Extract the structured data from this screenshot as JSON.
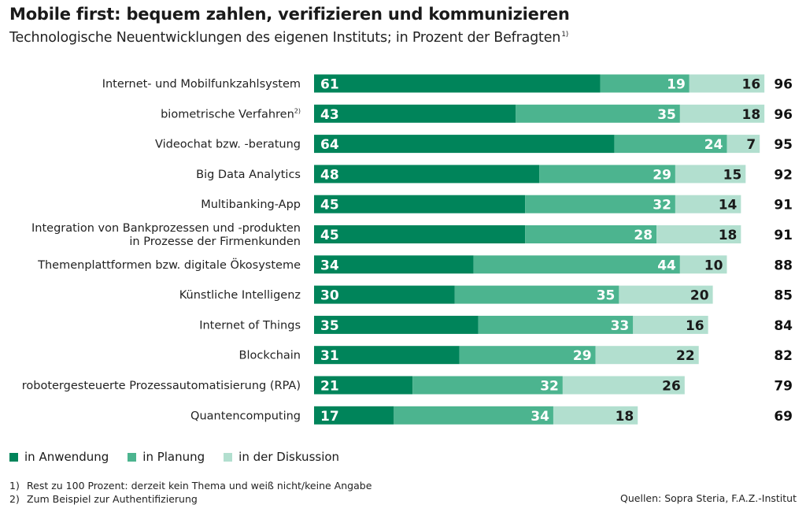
{
  "title": "Mobile first: bequem zahlen, verifizieren und kommunizieren",
  "subtitle": "Technologische Neuentwicklungen des eigenen Instituts; in Prozent der Befragten",
  "subtitle_note": "1)",
  "colors": {
    "in_anwendung": "#00845a",
    "in_planung": "#4cb48f",
    "in_diskussion": "#b2dfcf"
  },
  "legend": [
    {
      "label": "in Anwendung",
      "color": "#00845a"
    },
    {
      "label": "in Planung",
      "color": "#4cb48f"
    },
    {
      "label": "in der Diskussion",
      "color": "#b2dfcf"
    }
  ],
  "footnotes": [
    {
      "num": "1)",
      "text": "Rest zu 100 Prozent: derzeit kein Thema und weiß nicht/keine Angabe"
    },
    {
      "num": "2)",
      "text": "Zum Beispiel zur Authentifizierung"
    }
  ],
  "source": "Quellen: Sopra Steria, F.A.Z.-Institut",
  "chart_data": {
    "type": "bar",
    "orientation": "horizontal",
    "stacked": true,
    "categories": [
      {
        "lines": [
          "Internet- und Mobilfunkzahlsystem"
        ],
        "note": ""
      },
      {
        "lines": [
          "biometrische Verfahren"
        ],
        "note": "2)"
      },
      {
        "lines": [
          "Videochat bzw. -beratung"
        ],
        "note": ""
      },
      {
        "lines": [
          "Big Data Analytics"
        ],
        "note": ""
      },
      {
        "lines": [
          "Multibanking-App"
        ],
        "note": ""
      },
      {
        "lines": [
          "Integration von Bankprozessen und -produkten",
          "in Prozesse der Firmenkunden"
        ],
        "note": ""
      },
      {
        "lines": [
          "Themenplattformen bzw. digitale Ökosysteme"
        ],
        "note": ""
      },
      {
        "lines": [
          "Künstliche Intelligenz"
        ],
        "note": ""
      },
      {
        "lines": [
          "Internet of Things"
        ],
        "note": ""
      },
      {
        "lines": [
          "Blockchain"
        ],
        "note": ""
      },
      {
        "lines": [
          "robotergesteuerte Prozessautomatisierung (RPA)"
        ],
        "note": ""
      },
      {
        "lines": [
          "Quantencomputing"
        ],
        "note": ""
      }
    ],
    "series": [
      {
        "name": "in Anwendung",
        "values": [
          61,
          43,
          64,
          48,
          45,
          45,
          34,
          30,
          35,
          31,
          21,
          17
        ]
      },
      {
        "name": "in Planung",
        "values": [
          19,
          35,
          24,
          29,
          32,
          28,
          44,
          35,
          33,
          29,
          32,
          34
        ]
      },
      {
        "name": "in der Diskussion",
        "values": [
          16,
          18,
          7,
          15,
          14,
          18,
          10,
          20,
          16,
          22,
          26,
          18
        ]
      }
    ],
    "totals": [
      96,
      96,
      95,
      92,
      91,
      91,
      88,
      85,
      84,
      82,
      79,
      69
    ],
    "xlim": [
      0,
      100
    ],
    "grid": false,
    "legend_position": "bottom-left"
  }
}
